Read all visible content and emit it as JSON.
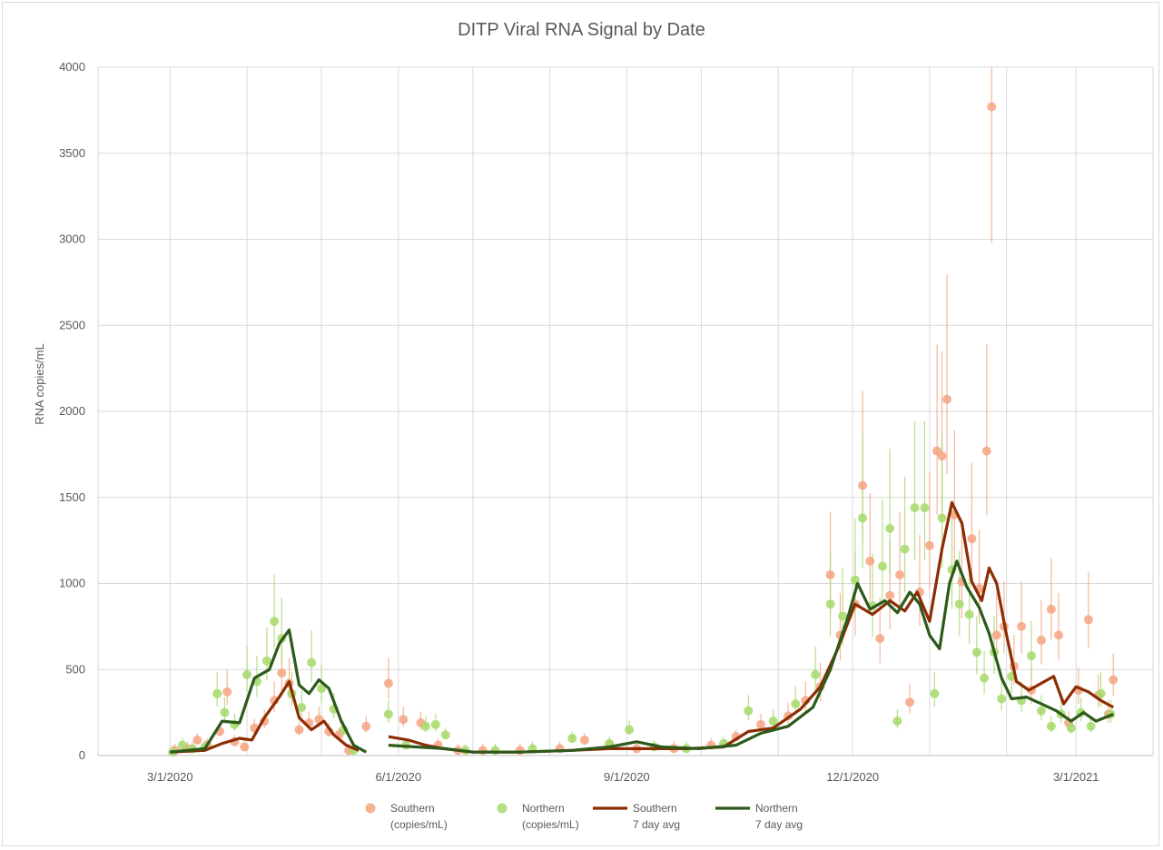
{
  "chart_data": {
    "type": "scatter",
    "title": "DITP Viral RNA Signal by Date",
    "xlabel": "",
    "ylabel": "RNA copies/mL",
    "x_tick_labels": [
      "3/1/2020",
      "6/1/2020",
      "9/1/2020",
      "12/1/2020",
      "3/1/2021"
    ],
    "x_ticks": [
      "2020-03-01",
      "2020-06-01",
      "2020-09-01",
      "2020-12-01",
      "2021-03-01"
    ],
    "xlim": [
      "2020-02-01",
      "2021-04-01"
    ],
    "ylim": [
      0,
      4000
    ],
    "y_ticks": [
      0,
      500,
      1000,
      1500,
      2000,
      2500,
      3000,
      3500,
      4000
    ],
    "grid": true,
    "legend_position": "bottom",
    "colors": {
      "southern_points": "#f4a582",
      "northern_points": "#a6d96a",
      "southern_line": "#8c2d04",
      "northern_line": "#2d5a1b",
      "grid": "#d9d9d9",
      "text": "#595959"
    },
    "series": [
      {
        "name": "Southern\n(copies/mL)",
        "kind": "scatter",
        "points": [
          [
            "2020-03-03",
            30
          ],
          [
            "2020-03-08",
            40
          ],
          [
            "2020-03-12",
            90
          ],
          [
            "2020-03-16",
            60
          ],
          [
            "2020-03-21",
            140
          ],
          [
            "2020-03-24",
            370
          ],
          [
            "2020-03-27",
            80
          ],
          [
            "2020-03-31",
            50
          ],
          [
            "2020-04-04",
            160
          ],
          [
            "2020-04-08",
            200
          ],
          [
            "2020-04-12",
            320
          ],
          [
            "2020-04-15",
            480
          ],
          [
            "2020-04-18",
            420
          ],
          [
            "2020-04-22",
            150
          ],
          [
            "2020-04-26",
            190
          ],
          [
            "2020-04-30",
            210
          ],
          [
            "2020-05-04",
            140
          ],
          [
            "2020-05-08",
            120
          ],
          [
            "2020-05-12",
            30
          ],
          [
            "2020-05-19",
            170
          ],
          [
            "2020-05-28",
            420
          ],
          [
            "2020-06-03",
            210
          ],
          [
            "2020-06-10",
            190
          ],
          [
            "2020-06-17",
            60
          ],
          [
            "2020-06-25",
            30
          ],
          [
            "2020-07-05",
            30
          ],
          [
            "2020-07-20",
            30
          ],
          [
            "2020-08-05",
            40
          ],
          [
            "2020-08-15",
            90
          ],
          [
            "2020-08-25",
            60
          ],
          [
            "2020-09-05",
            40
          ],
          [
            "2020-09-20",
            40
          ],
          [
            "2020-10-05",
            60
          ],
          [
            "2020-10-15",
            110
          ],
          [
            "2020-10-25",
            180
          ],
          [
            "2020-11-05",
            230
          ],
          [
            "2020-11-12",
            320
          ],
          [
            "2020-11-18",
            400
          ],
          [
            "2020-11-22",
            1050
          ],
          [
            "2020-11-26",
            700
          ],
          [
            "2020-12-02",
            880
          ],
          [
            "2020-12-05",
            1570
          ],
          [
            "2020-12-08",
            1130
          ],
          [
            "2020-12-12",
            680
          ],
          [
            "2020-12-16",
            930
          ],
          [
            "2020-12-20",
            1050
          ],
          [
            "2020-12-24",
            310
          ],
          [
            "2020-12-28",
            950
          ],
          [
            "2021-01-01",
            1220
          ],
          [
            "2021-01-04",
            1770
          ],
          [
            "2021-01-06",
            1740
          ],
          [
            "2021-01-08",
            2070
          ],
          [
            "2021-01-11",
            1400
          ],
          [
            "2021-01-14",
            1010
          ],
          [
            "2021-01-18",
            1260
          ],
          [
            "2021-01-21",
            970
          ],
          [
            "2021-01-24",
            1770
          ],
          [
            "2021-01-26",
            3770
          ],
          [
            "2021-01-28",
            700
          ],
          [
            "2021-01-31",
            750
          ],
          [
            "2021-02-04",
            520
          ],
          [
            "2021-02-07",
            750
          ],
          [
            "2021-02-11",
            380
          ],
          [
            "2021-02-15",
            670
          ],
          [
            "2021-02-19",
            850
          ],
          [
            "2021-02-22",
            700
          ],
          [
            "2021-02-26",
            190
          ],
          [
            "2021-03-02",
            380
          ],
          [
            "2021-03-06",
            790
          ],
          [
            "2021-03-10",
            350
          ],
          [
            "2021-03-14",
            240
          ],
          [
            "2021-03-16",
            440
          ]
        ]
      },
      {
        "name": "Northern\n(copies/mL)",
        "kind": "scatter",
        "points": [
          [
            "2020-03-02",
            20
          ],
          [
            "2020-03-06",
            60
          ],
          [
            "2020-03-10",
            40
          ],
          [
            "2020-03-15",
            50
          ],
          [
            "2020-03-20",
            360
          ],
          [
            "2020-03-23",
            250
          ],
          [
            "2020-03-27",
            180
          ],
          [
            "2020-04-01",
            470
          ],
          [
            "2020-04-05",
            430
          ],
          [
            "2020-04-09",
            550
          ],
          [
            "2020-04-12",
            780
          ],
          [
            "2020-04-15",
            680
          ],
          [
            "2020-04-19",
            360
          ],
          [
            "2020-04-23",
            280
          ],
          [
            "2020-04-27",
            540
          ],
          [
            "2020-05-01",
            390
          ],
          [
            "2020-05-06",
            270
          ],
          [
            "2020-05-10",
            150
          ],
          [
            "2020-05-14",
            30
          ],
          [
            "2020-05-28",
            240
          ],
          [
            "2020-06-04",
            60
          ],
          [
            "2020-06-12",
            170
          ],
          [
            "2020-06-16",
            180
          ],
          [
            "2020-06-20",
            120
          ],
          [
            "2020-06-28",
            30
          ],
          [
            "2020-07-10",
            30
          ],
          [
            "2020-07-25",
            40
          ],
          [
            "2020-08-10",
            100
          ],
          [
            "2020-08-25",
            70
          ],
          [
            "2020-09-02",
            150
          ],
          [
            "2020-09-12",
            50
          ],
          [
            "2020-09-25",
            40
          ],
          [
            "2020-10-10",
            70
          ],
          [
            "2020-10-20",
            260
          ],
          [
            "2020-10-30",
            200
          ],
          [
            "2020-11-08",
            300
          ],
          [
            "2020-11-16",
            470
          ],
          [
            "2020-11-22",
            880
          ],
          [
            "2020-11-27",
            810
          ],
          [
            "2020-12-02",
            1020
          ],
          [
            "2020-12-05",
            1380
          ],
          [
            "2020-12-09",
            870
          ],
          [
            "2020-12-13",
            1100
          ],
          [
            "2020-12-16",
            1320
          ],
          [
            "2020-12-19",
            200
          ],
          [
            "2020-12-22",
            1200
          ],
          [
            "2020-12-26",
            1440
          ],
          [
            "2020-12-30",
            1440
          ],
          [
            "2021-01-03",
            360
          ],
          [
            "2021-01-06",
            1380
          ],
          [
            "2021-01-10",
            1080
          ],
          [
            "2021-01-13",
            880
          ],
          [
            "2021-01-17",
            820
          ],
          [
            "2021-01-20",
            600
          ],
          [
            "2021-01-23",
            450
          ],
          [
            "2021-01-27",
            600
          ],
          [
            "2021-01-30",
            330
          ],
          [
            "2021-02-03",
            460
          ],
          [
            "2021-02-07",
            320
          ],
          [
            "2021-02-11",
            580
          ],
          [
            "2021-02-15",
            260
          ],
          [
            "2021-02-19",
            170
          ],
          [
            "2021-02-23",
            240
          ],
          [
            "2021-02-27",
            160
          ],
          [
            "2021-03-03",
            250
          ],
          [
            "2021-03-07",
            170
          ],
          [
            "2021-03-11",
            360
          ],
          [
            "2021-03-15",
            240
          ]
        ]
      },
      {
        "name": "Southern\n7 day avg",
        "kind": "line",
        "segments": [
          [
            [
              "2020-03-01",
              20
            ],
            [
              "2020-03-15",
              30
            ],
            [
              "2020-03-22",
              70
            ],
            [
              "2020-03-29",
              100
            ],
            [
              "2020-04-03",
              90
            ],
            [
              "2020-04-08",
              220
            ],
            [
              "2020-04-14",
              340
            ],
            [
              "2020-04-18",
              430
            ],
            [
              "2020-04-22",
              220
            ],
            [
              "2020-04-27",
              150
            ],
            [
              "2020-05-02",
              200
            ],
            [
              "2020-05-06",
              120
            ],
            [
              "2020-05-11",
              60
            ],
            [
              "2020-05-16",
              30
            ]
          ],
          [
            [
              "2020-05-28",
              110
            ],
            [
              "2020-06-05",
              90
            ],
            [
              "2020-06-12",
              60
            ],
            [
              "2020-06-19",
              40
            ],
            [
              "2020-07-01",
              20
            ],
            [
              "2020-07-20",
              20
            ],
            [
              "2020-08-10",
              30
            ],
            [
              "2020-08-25",
              40
            ],
            [
              "2020-09-10",
              40
            ],
            [
              "2020-09-25",
              40
            ],
            [
              "2020-10-10",
              50
            ],
            [
              "2020-10-20",
              140
            ],
            [
              "2020-10-30",
              160
            ],
            [
              "2020-11-10",
              270
            ],
            [
              "2020-11-18",
              400
            ],
            [
              "2020-11-25",
              620
            ],
            [
              "2020-12-02",
              880
            ],
            [
              "2020-12-09",
              820
            ],
            [
              "2020-12-16",
              900
            ],
            [
              "2020-12-22",
              840
            ],
            [
              "2020-12-27",
              950
            ],
            [
              "2021-01-01",
              780
            ],
            [
              "2021-01-06",
              1200
            ],
            [
              "2021-01-10",
              1470
            ],
            [
              "2021-01-14",
              1350
            ],
            [
              "2021-01-18",
              1010
            ],
            [
              "2021-01-22",
              900
            ],
            [
              "2021-01-25",
              1090
            ],
            [
              "2021-01-28",
              1000
            ],
            [
              "2021-02-01",
              700
            ],
            [
              "2021-02-05",
              430
            ],
            [
              "2021-02-10",
              380
            ],
            [
              "2021-02-15",
              420
            ],
            [
              "2021-02-20",
              460
            ],
            [
              "2021-02-24",
              300
            ],
            [
              "2021-03-01",
              400
            ],
            [
              "2021-03-06",
              370
            ],
            [
              "2021-03-11",
              320
            ],
            [
              "2021-03-16",
              280
            ]
          ]
        ]
      },
      {
        "name": "Northern\n7 day avg",
        "kind": "line",
        "segments": [
          [
            [
              "2020-03-01",
              20
            ],
            [
              "2020-03-15",
              40
            ],
            [
              "2020-03-22",
              200
            ],
            [
              "2020-03-29",
              190
            ],
            [
              "2020-04-04",
              450
            ],
            [
              "2020-04-10",
              500
            ],
            [
              "2020-04-14",
              650
            ],
            [
              "2020-04-18",
              730
            ],
            [
              "2020-04-22",
              410
            ],
            [
              "2020-04-26",
              360
            ],
            [
              "2020-04-30",
              440
            ],
            [
              "2020-05-04",
              390
            ],
            [
              "2020-05-09",
              200
            ],
            [
              "2020-05-14",
              60
            ],
            [
              "2020-05-19",
              20
            ]
          ],
          [
            [
              "2020-05-28",
              60
            ],
            [
              "2020-06-08",
              50
            ],
            [
              "2020-06-20",
              40
            ],
            [
              "2020-07-01",
              20
            ],
            [
              "2020-07-20",
              20
            ],
            [
              "2020-08-10",
              30
            ],
            [
              "2020-08-25",
              50
            ],
            [
              "2020-09-05",
              80
            ],
            [
              "2020-09-15",
              50
            ],
            [
              "2020-09-30",
              40
            ],
            [
              "2020-10-15",
              60
            ],
            [
              "2020-10-25",
              130
            ],
            [
              "2020-11-05",
              170
            ],
            [
              "2020-11-15",
              280
            ],
            [
              "2020-11-22",
              500
            ],
            [
              "2020-11-29",
              800
            ],
            [
              "2020-12-03",
              1000
            ],
            [
              "2020-12-08",
              850
            ],
            [
              "2020-12-14",
              900
            ],
            [
              "2020-12-19",
              830
            ],
            [
              "2020-12-24",
              950
            ],
            [
              "2020-12-28",
              880
            ],
            [
              "2021-01-01",
              700
            ],
            [
              "2021-01-05",
              620
            ],
            [
              "2021-01-09",
              1000
            ],
            [
              "2021-01-12",
              1130
            ],
            [
              "2021-01-16",
              980
            ],
            [
              "2021-01-21",
              860
            ],
            [
              "2021-01-25",
              710
            ],
            [
              "2021-01-30",
              450
            ],
            [
              "2021-02-03",
              330
            ],
            [
              "2021-02-09",
              340
            ],
            [
              "2021-02-15",
              300
            ],
            [
              "2021-02-21",
              260
            ],
            [
              "2021-02-27",
              200
            ],
            [
              "2021-03-04",
              250
            ],
            [
              "2021-03-09",
              200
            ],
            [
              "2021-03-16",
              240
            ]
          ]
        ]
      }
    ]
  }
}
